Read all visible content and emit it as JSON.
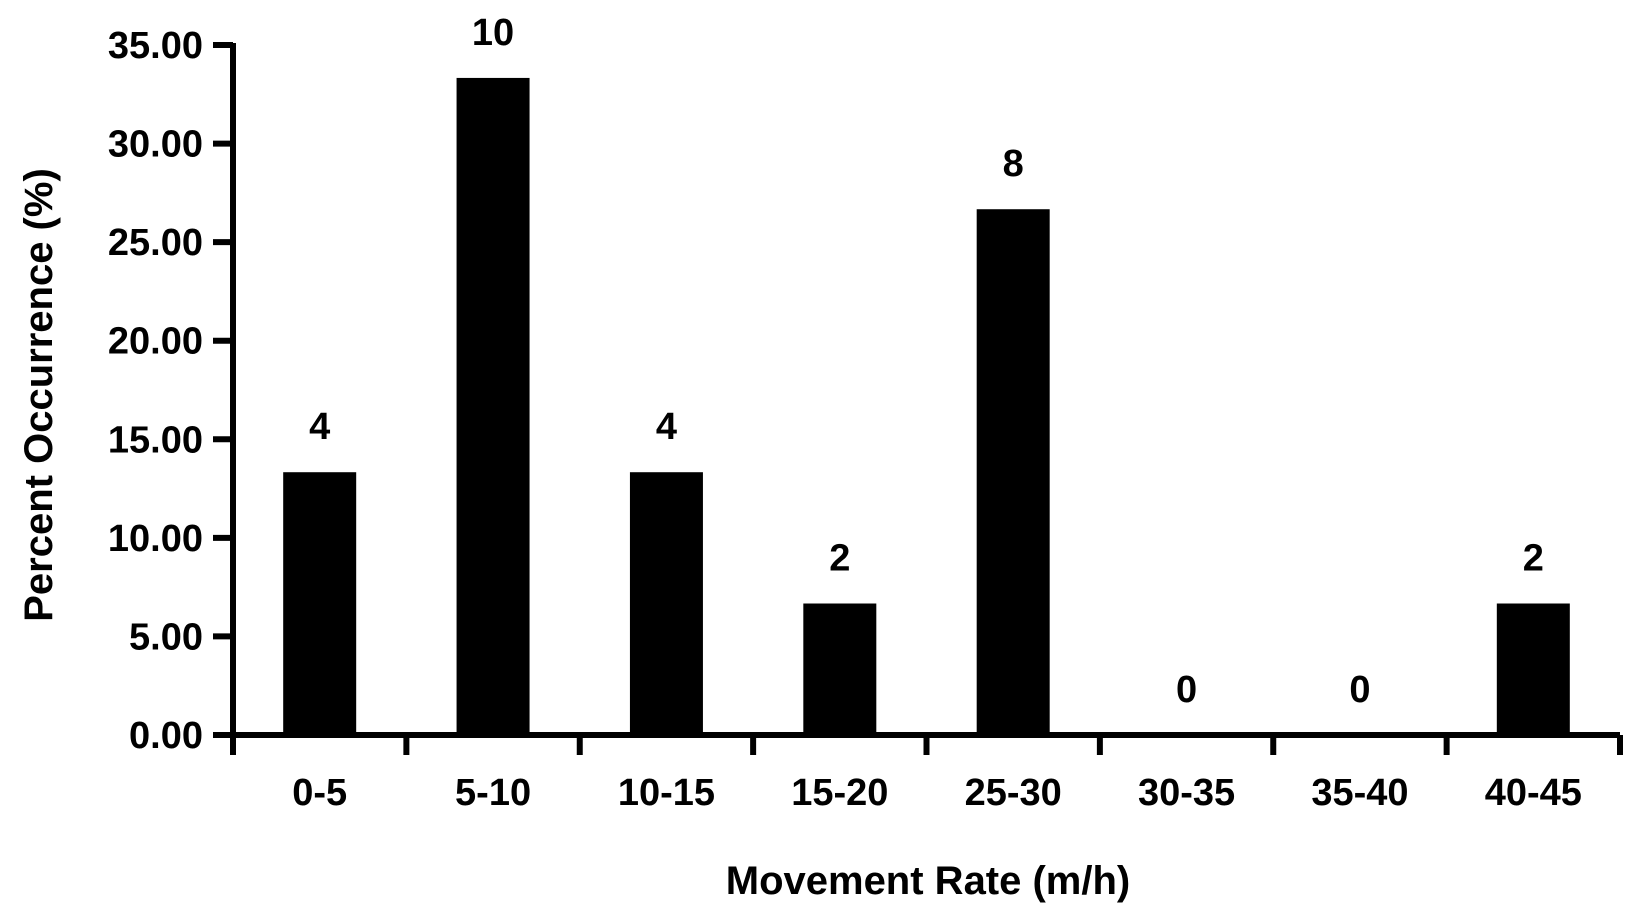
{
  "chart_data": {
    "type": "bar",
    "title": "",
    "xlabel": "Movement Rate (m/h)",
    "ylabel": "Percent Occurrence (%)",
    "categories": [
      "0-5",
      "5-10",
      "10-15",
      "15-20",
      "25-30",
      "30-35",
      "35-40",
      "40-45"
    ],
    "values": [
      13.33,
      33.33,
      13.33,
      6.67,
      26.67,
      0.0,
      0.0,
      6.67
    ],
    "counts": [
      "4",
      "10",
      "4",
      "2",
      "8",
      "0",
      "0",
      "2"
    ],
    "ylim": [
      0,
      35
    ],
    "yticks": [
      "0.00",
      "5.00",
      "10.00",
      "15.00",
      "20.00",
      "25.00",
      "30.00",
      "35.00"
    ],
    "grid": false,
    "legend": "none",
    "colors": {
      "bar": "#000000",
      "axis": "#000000",
      "background": "#ffffff"
    }
  }
}
